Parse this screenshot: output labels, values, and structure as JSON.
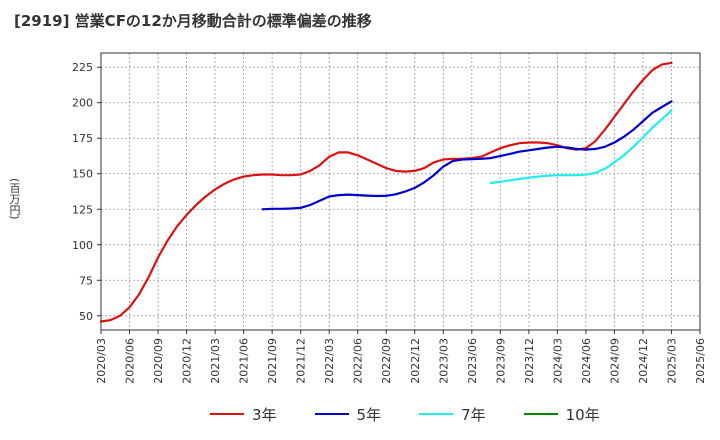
{
  "chart_data": {
    "type": "line",
    "title": "[2919]  営業CFの12か月移動合計の標準偏差の推移",
    "xlabel": "",
    "ylabel": "(百万円)",
    "ylim": [
      40,
      235
    ],
    "yticks": [
      50,
      75,
      100,
      125,
      150,
      175,
      200,
      225
    ],
    "grid": true,
    "legend_position": "bottom",
    "x_ticks": [
      "2020/03",
      "2020/06",
      "2020/09",
      "2020/12",
      "2021/03",
      "2021/06",
      "2021/09",
      "2021/12",
      "2022/03",
      "2022/06",
      "2022/09",
      "2022/12",
      "2023/03",
      "2023/06",
      "2023/09",
      "2023/12",
      "2024/03",
      "2024/06",
      "2024/09",
      "2024/12",
      "2025/03",
      "2025/06"
    ],
    "series": [
      {
        "name": "3年",
        "color": "#dd1111",
        "points": [
          [
            "2020/03",
            46
          ],
          [
            "2020/04",
            47
          ],
          [
            "2020/05",
            50
          ],
          [
            "2020/06",
            56
          ],
          [
            "2020/07",
            65
          ],
          [
            "2020/08",
            77
          ],
          [
            "2020/09",
            91
          ],
          [
            "2020/10",
            103
          ],
          [
            "2020/11",
            113
          ],
          [
            "2020/12",
            121
          ],
          [
            "2021/01",
            128
          ],
          [
            "2021/02",
            134
          ],
          [
            "2021/03",
            139
          ],
          [
            "2021/04",
            143
          ],
          [
            "2021/05",
            146
          ],
          [
            "2021/06",
            148
          ],
          [
            "2021/07",
            149
          ],
          [
            "2021/08",
            149.5
          ],
          [
            "2021/09",
            149.5
          ],
          [
            "2021/10",
            149
          ],
          [
            "2021/11",
            149
          ],
          [
            "2021/12",
            149.5
          ],
          [
            "2022/01",
            152
          ],
          [
            "2022/02",
            156
          ],
          [
            "2022/03",
            162
          ],
          [
            "2022/04",
            165
          ],
          [
            "2022/05",
            165
          ],
          [
            "2022/06",
            163
          ],
          [
            "2022/07",
            160
          ],
          [
            "2022/08",
            157
          ],
          [
            "2022/09",
            154
          ],
          [
            "2022/10",
            152
          ],
          [
            "2022/11",
            151.5
          ],
          [
            "2022/12",
            152
          ],
          [
            "2023/01",
            154
          ],
          [
            "2023/02",
            158
          ],
          [
            "2023/03",
            160
          ],
          [
            "2023/04",
            160.5
          ],
          [
            "2023/05",
            160.5
          ],
          [
            "2023/06",
            161
          ],
          [
            "2023/07",
            162
          ],
          [
            "2023/08",
            165
          ],
          [
            "2023/09",
            168
          ],
          [
            "2023/10",
            170
          ],
          [
            "2023/11",
            171.5
          ],
          [
            "2023/12",
            172
          ],
          [
            "2024/01",
            172
          ],
          [
            "2024/02",
            171.5
          ],
          [
            "2024/03",
            170
          ],
          [
            "2024/04",
            168
          ],
          [
            "2024/05",
            167
          ],
          [
            "2024/06",
            168
          ],
          [
            "2024/07",
            173
          ],
          [
            "2024/08",
            181
          ],
          [
            "2024/09",
            190
          ],
          [
            "2024/10",
            199
          ],
          [
            "2024/11",
            208
          ],
          [
            "2024/12",
            216
          ],
          [
            "2025/01",
            223
          ],
          [
            "2025/02",
            227
          ],
          [
            "2025/03",
            228
          ]
        ]
      },
      {
        "name": "5年",
        "color": "#0000cc",
        "points": [
          [
            "2021/08",
            125
          ],
          [
            "2021/09",
            125.3
          ],
          [
            "2021/10",
            125.3
          ],
          [
            "2021/11",
            125.5
          ],
          [
            "2021/12",
            126
          ],
          [
            "2022/01",
            128
          ],
          [
            "2022/02",
            131
          ],
          [
            "2022/03",
            134
          ],
          [
            "2022/04",
            135
          ],
          [
            "2022/05",
            135.3
          ],
          [
            "2022/06",
            135
          ],
          [
            "2022/07",
            134.6
          ],
          [
            "2022/08",
            134.3
          ],
          [
            "2022/09",
            134.5
          ],
          [
            "2022/10",
            135.5
          ],
          [
            "2022/11",
            137.5
          ],
          [
            "2022/12",
            140
          ],
          [
            "2023/01",
            144
          ],
          [
            "2023/02",
            149
          ],
          [
            "2023/03",
            155
          ],
          [
            "2023/04",
            159
          ],
          [
            "2023/05",
            160
          ],
          [
            "2023/06",
            160.3
          ],
          [
            "2023/07",
            160.5
          ],
          [
            "2023/08",
            161
          ],
          [
            "2023/09",
            162.5
          ],
          [
            "2023/10",
            164
          ],
          [
            "2023/11",
            165.5
          ],
          [
            "2023/12",
            166.5
          ],
          [
            "2024/01",
            167.5
          ],
          [
            "2024/02",
            168.5
          ],
          [
            "2024/03",
            169
          ],
          [
            "2024/04",
            168.5
          ],
          [
            "2024/05",
            167.5
          ],
          [
            "2024/06",
            167
          ],
          [
            "2024/07",
            167.5
          ],
          [
            "2024/08",
            169
          ],
          [
            "2024/09",
            172
          ],
          [
            "2024/10",
            176
          ],
          [
            "2024/11",
            181
          ],
          [
            "2024/12",
            187
          ],
          [
            "2025/01",
            193
          ],
          [
            "2025/02",
            197
          ],
          [
            "2025/03",
            201
          ]
        ]
      },
      {
        "name": "7年",
        "color": "#22eeee",
        "points": [
          [
            "2023/08",
            143.5
          ],
          [
            "2023/09",
            144.3
          ],
          [
            "2023/10",
            145.3
          ],
          [
            "2023/11",
            146.3
          ],
          [
            "2023/12",
            147.3
          ],
          [
            "2024/01",
            148
          ],
          [
            "2024/02",
            148.7
          ],
          [
            "2024/03",
            149
          ],
          [
            "2024/04",
            149
          ],
          [
            "2024/05",
            149
          ],
          [
            "2024/06",
            149.3
          ],
          [
            "2024/07",
            150.5
          ],
          [
            "2024/08",
            153.5
          ],
          [
            "2024/09",
            158
          ],
          [
            "2024/10",
            163
          ],
          [
            "2024/11",
            169
          ],
          [
            "2024/12",
            175.5
          ],
          [
            "2025/01",
            182.5
          ],
          [
            "2025/02",
            188.5
          ],
          [
            "2025/03",
            194.5
          ]
        ]
      },
      {
        "name": "10年",
        "color": "#008800",
        "points": []
      }
    ]
  }
}
